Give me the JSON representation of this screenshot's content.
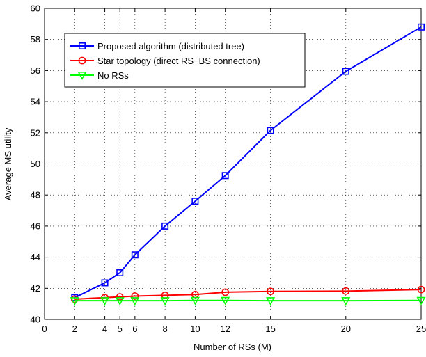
{
  "chart_data": {
    "type": "line",
    "xlabel": "Number of RSs (M)",
    "ylabel": "Average MS utility",
    "xlim": [
      0,
      25
    ],
    "ylim": [
      40,
      60
    ],
    "x_ticks": [
      0,
      2,
      4,
      5,
      6,
      8,
      10,
      12,
      15,
      20,
      25
    ],
    "y_ticks": [
      40,
      42,
      44,
      46,
      48,
      50,
      52,
      54,
      56,
      58,
      60
    ],
    "grid": true,
    "legend_position": "top-left",
    "series": [
      {
        "name": "Proposed algorithm (distributed tree)",
        "color": "#0000ff",
        "marker": "square",
        "x": [
          2,
          4,
          5,
          6,
          8,
          10,
          12,
          15,
          20,
          25
        ],
        "y": [
          41.4,
          42.35,
          43.0,
          44.15,
          46.0,
          47.6,
          49.25,
          52.15,
          55.95,
          58.8
        ]
      },
      {
        "name": "Star topology (direct RS−BS connection)",
        "color": "#ff0000",
        "marker": "circle",
        "x": [
          2,
          4,
          5,
          6,
          8,
          10,
          12,
          15,
          20,
          25
        ],
        "y": [
          41.3,
          41.4,
          41.45,
          41.5,
          41.55,
          41.6,
          41.75,
          41.8,
          41.82,
          41.92
        ]
      },
      {
        "name": "No RSs",
        "color": "#00ff00",
        "marker": "triangle-down",
        "x": [
          2,
          4,
          5,
          6,
          8,
          10,
          12,
          15,
          20,
          25
        ],
        "y": [
          41.2,
          41.2,
          41.2,
          41.2,
          41.2,
          41.22,
          41.22,
          41.2,
          41.2,
          41.22
        ]
      }
    ]
  }
}
